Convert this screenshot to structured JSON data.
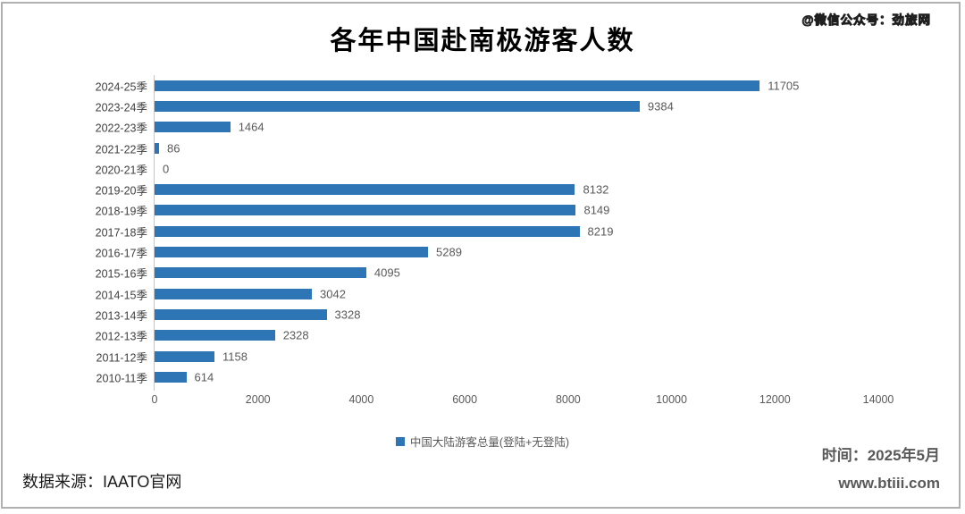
{
  "watermark": "@微信公众号：劲旅网",
  "title": "各年中国赴南极游客人数",
  "chart_data": {
    "type": "bar",
    "orientation": "horizontal",
    "title": "各年中国赴南极游客人数",
    "categories": [
      "2024-25季",
      "2023-24季",
      "2022-23季",
      "2021-22季",
      "2020-21季",
      "2019-20季",
      "2018-19季",
      "2017-18季",
      "2016-17季",
      "2015-16季",
      "2014-15季",
      "2013-14季",
      "2012-13季",
      "2011-12季",
      "2010-11季"
    ],
    "values": [
      11705,
      9384,
      1464,
      86,
      0,
      8132,
      8149,
      8219,
      5289,
      4095,
      3042,
      3328,
      2328,
      1158,
      614
    ],
    "xlim": [
      0,
      14000
    ],
    "xticks": [
      0,
      2000,
      4000,
      6000,
      8000,
      10000,
      12000,
      14000
    ],
    "grid": false,
    "legend": "中国大陆游客总量(登陆+无登陆)",
    "legend_position": "bottom",
    "bar_color": "#2e75b6",
    "value_labels_shown": true
  },
  "footer": {
    "source": "数据来源：IAATO官网",
    "time": "时间：2025年5月",
    "website": "www.btiii.com"
  }
}
